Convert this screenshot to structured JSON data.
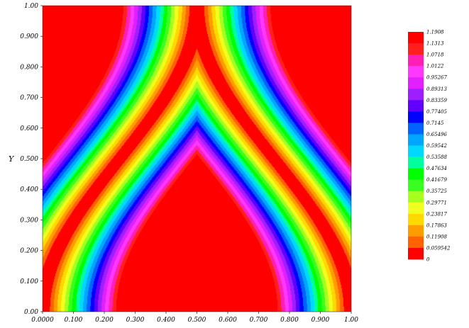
{
  "chart_data": {
    "type": "heatmap",
    "title": "",
    "xlabel": "",
    "ylabel": "Y",
    "xlim": [
      0,
      1
    ],
    "ylim": [
      0,
      1
    ],
    "x_ticks": [
      "0.0000",
      "0.100",
      "0.200",
      "0.300",
      "0.400",
      "0.500",
      "0.600",
      "0.700",
      "0.800",
      "0.900",
      "1.00"
    ],
    "y_ticks": [
      "0.00",
      "0.100",
      "0.200",
      "0.300",
      "0.400",
      "0.500",
      "0.600",
      "0.700",
      "0.800",
      "0.900",
      "1.00"
    ],
    "contour_levels": [
      "1.1908",
      "1.1313",
      "1.0718",
      "1.0122",
      "0.95267",
      "0.89313",
      "0.83359",
      "0.77405",
      "0.7145",
      "0.65496",
      "0.59542",
      "0.53588",
      "0.47634",
      "0.41679",
      "0.35725",
      "0.29771",
      "0.23817",
      "0.17863",
      "0.11908",
      "0.059542",
      "0"
    ],
    "level_colors": [
      "#ff0000",
      "#ff1f1f",
      "#ff1fb4",
      "#ff38ff",
      "#e21fff",
      "#9d1fff",
      "#6200ff",
      "#0000ff",
      "#0062ff",
      "#00a5ff",
      "#00d9ff",
      "#00ff9d",
      "#00ff00",
      "#38ff1f",
      "#a5ff1f",
      "#f0ff1f",
      "#ffd900",
      "#ff9d00",
      "#ff6200",
      "#ff0000",
      "#ff0000"
    ],
    "legend_position": "right",
    "grid": false
  }
}
